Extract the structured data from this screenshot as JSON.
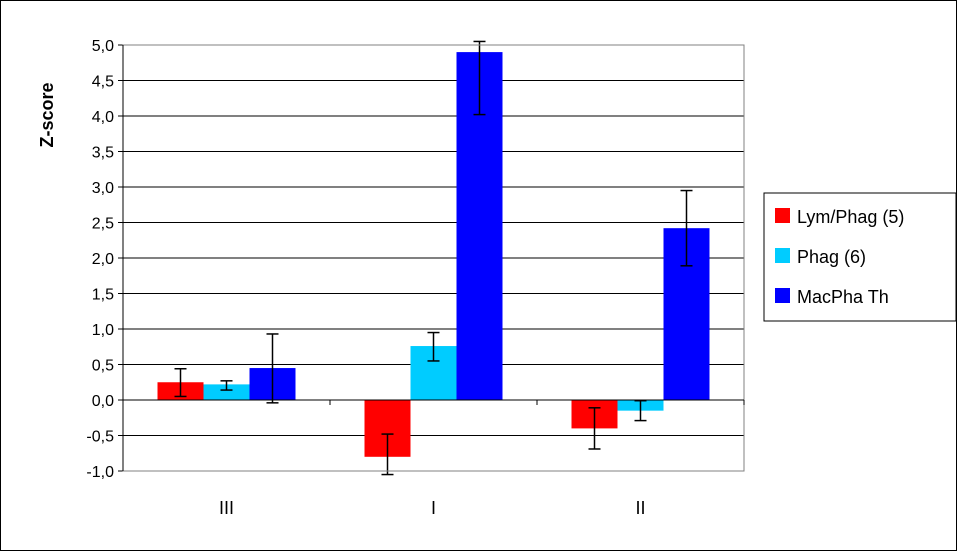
{
  "chart_data": {
    "type": "bar",
    "categories": [
      "III",
      "I",
      "II"
    ],
    "series": [
      {
        "name": "Lym/Phag (5)",
        "color": "#ff0000",
        "values": [
          0.25,
          -0.8,
          -0.4
        ],
        "err_low": [
          0.05,
          -1.05,
          -0.69
        ],
        "err_high": [
          0.44,
          -0.48,
          -0.11
        ]
      },
      {
        "name": "Phag (6)",
        "color": "#00ccff",
        "values": [
          0.22,
          0.76,
          -0.15
        ],
        "err_low": [
          0.14,
          0.55,
          -0.29
        ],
        "err_high": [
          0.27,
          0.95,
          -0.01
        ]
      },
      {
        "name": "MacPha Th",
        "color": "#0000ff",
        "values": [
          0.45,
          4.9,
          2.42
        ],
        "err_low": [
          -0.04,
          4.02,
          1.89
        ],
        "err_high": [
          0.93,
          5.05,
          2.95
        ]
      }
    ],
    "title": "",
    "xlabel": "",
    "ylabel": "Z-score",
    "ylim": [
      -1.0,
      5.0
    ],
    "yticks": [
      "-1,0",
      "-0,5",
      "0,0",
      "0,5",
      "1,0",
      "1,5",
      "2,0",
      "2,5",
      "3,0",
      "3,5",
      "4,0",
      "4,5",
      "5,0"
    ],
    "grid": true,
    "legend_position": "right"
  }
}
